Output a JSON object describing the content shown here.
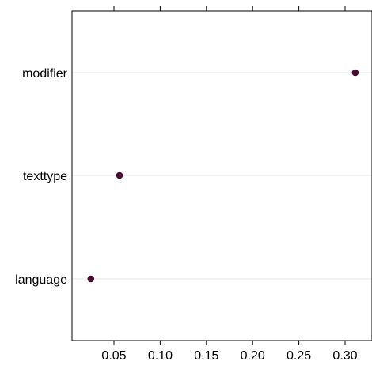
{
  "chart_data": {
    "type": "scatter",
    "title": "",
    "xlabel": "",
    "ylabel": "",
    "categories": [
      "language",
      "texttype",
      "modifier"
    ],
    "values": [
      0.025,
      0.056,
      0.311
    ],
    "xlim": [
      0.0,
      0.33
    ],
    "xticks": [
      0.05,
      0.1,
      0.15,
      0.2,
      0.25,
      0.3
    ],
    "xtick_labels": [
      "0.05",
      "0.10",
      "0.15",
      "0.20",
      "0.25",
      "0.30"
    ],
    "grid": "horizontal reference lines at each category",
    "top_axis_ticks": true,
    "colors": {
      "point": "#4b0c32",
      "grid": "#e6e6e6",
      "axis": "#000000"
    }
  }
}
